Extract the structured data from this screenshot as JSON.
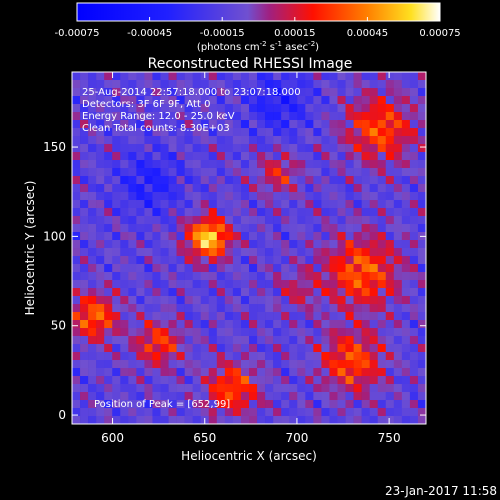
{
  "chart_data": {
    "type": "heatmap",
    "title": "Reconstructed RHESSI Image",
    "xlabel": "Heliocentric X (arcsec)",
    "ylabel": "Heliocentric Y (arcsec)",
    "xlim": [
      578,
      770
    ],
    "ylim": [
      -5,
      192
    ],
    "x_ticks": [
      600,
      650,
      700,
      750
    ],
    "y_ticks": [
      0,
      50,
      100,
      150
    ],
    "colorbar": {
      "min": -0.00075,
      "max": 0.00075,
      "ticks": [
        "-0.00075",
        "-0.00045",
        "-0.00015",
        "0.00015",
        "0.00045",
        "0.00075"
      ],
      "label_base": "(photons cm",
      "label_sup1": "-2",
      "label_mid1": " s",
      "label_sup2": "-1",
      "label_mid2": " asec",
      "label_sup3": "-2",
      "label_end": ")"
    },
    "annotations": [
      "25-Aug-2014 22:57:18.000 to 23:07:18.000",
      "Detectors: 3F 6F 9F, Att 0",
      "Energy Range: 12.0 - 25.0 keV",
      "Clean    Total counts: 8.30E+03"
    ],
    "peak_label": "Position of Peak = [652,99]",
    "peak": [
      652,
      99
    ],
    "sources": [
      {
        "x": 652,
        "y": 99,
        "amplitude": 0.00075,
        "sigma": 8
      },
      {
        "x": 590,
        "y": 55,
        "amplitude": 0.0005,
        "sigma": 9
      },
      {
        "x": 745,
        "y": 160,
        "amplitude": 0.00045,
        "sigma": 13
      },
      {
        "x": 735,
        "y": 80,
        "amplitude": 0.00048,
        "sigma": 14
      },
      {
        "x": 730,
        "y": 30,
        "amplitude": 0.00045,
        "sigma": 12
      },
      {
        "x": 665,
        "y": 15,
        "amplitude": 0.00045,
        "sigma": 10
      },
      {
        "x": 625,
        "y": 40,
        "amplitude": 0.0004,
        "sigma": 9
      },
      {
        "x": 690,
        "y": 135,
        "amplitude": 0.0003,
        "sigma": 8
      },
      {
        "x": 620,
        "y": 130,
        "amplitude": -0.00025,
        "sigma": 12
      },
      {
        "x": 690,
        "y": 175,
        "amplitude": -0.00025,
        "sigma": 12
      },
      {
        "x": 700,
        "y": 70,
        "amplitude": 0.0002,
        "sigma": 8
      }
    ]
  },
  "footer": {
    "date": "23-Jan-2017 11:58"
  },
  "colors": {
    "background": "#000000",
    "frame": "#ffffff"
  }
}
